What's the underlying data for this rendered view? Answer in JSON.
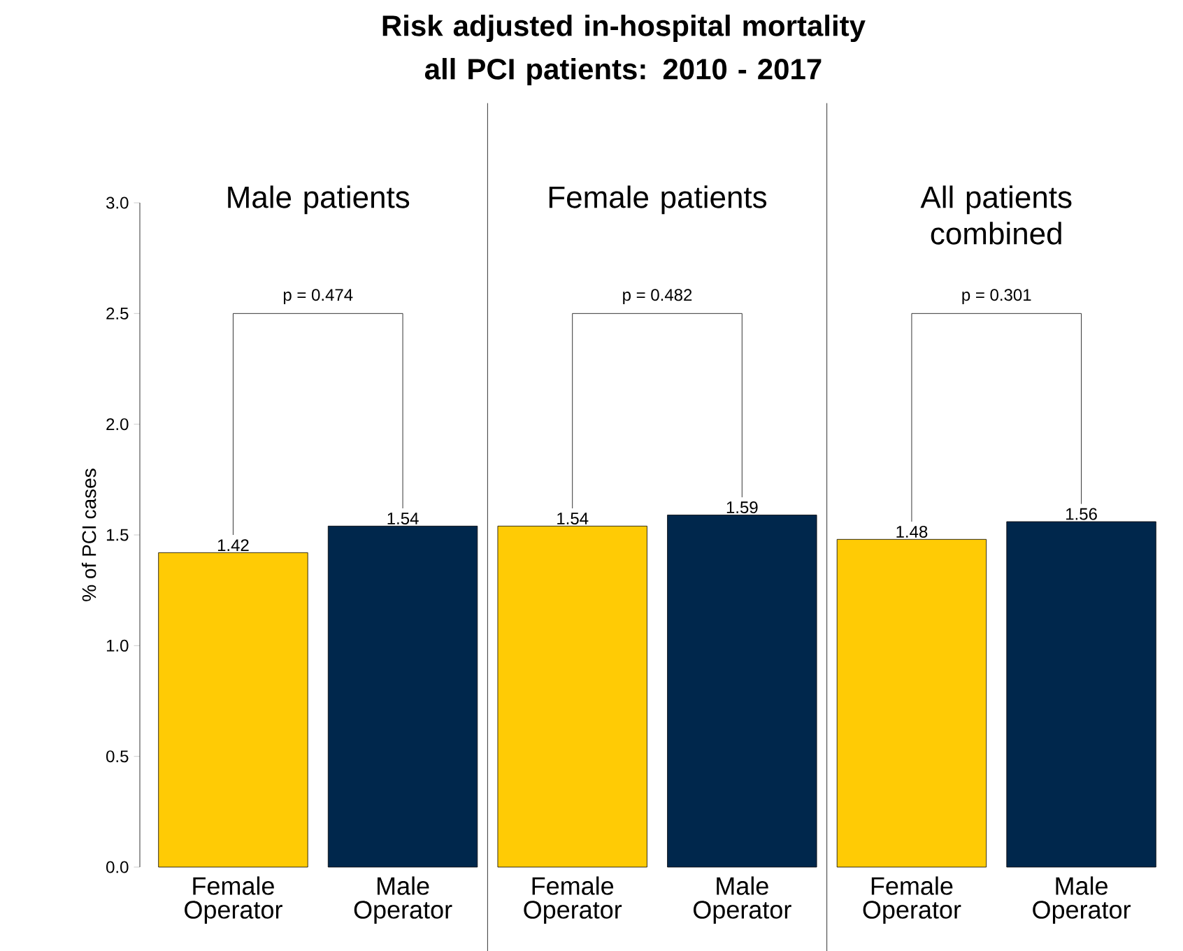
{
  "chart_data": {
    "type": "bar",
    "title": "Risk adjusted in-hospital mortality all PCI patients: 2010 - 2017",
    "ylabel": "% of PCI cases",
    "categories": [
      "Female Operator",
      "Male Operator",
      "Female Operator",
      "Male Operator",
      "Female Operator",
      "Male Operator"
    ],
    "values": [
      1.42,
      1.54,
      1.54,
      1.59,
      1.48,
      1.56
    ],
    "colors": [
      "#ffcb05",
      "#00274c",
      "#ffcb05",
      "#00274c",
      "#ffcb05",
      "#00274c"
    ],
    "ylim": [
      0,
      3
    ],
    "yticks": [
      {
        "value": 0,
        "label": "0.0"
      },
      {
        "value": 0.5,
        "label": "0.5"
      },
      {
        "value": 1,
        "label": "1.0"
      },
      {
        "value": 1.5,
        "label": "1.5"
      },
      {
        "value": 2,
        "label": "2.0"
      },
      {
        "value": 2.5,
        "label": "2.5"
      },
      {
        "value": 3,
        "label": "3.0"
      }
    ],
    "data_labels": true,
    "annotations": [
      "Male patients",
      "Female patients",
      "All patients combined",
      "p = 0.474",
      "p = 0.482",
      "p = 0.301"
    ]
  }
}
